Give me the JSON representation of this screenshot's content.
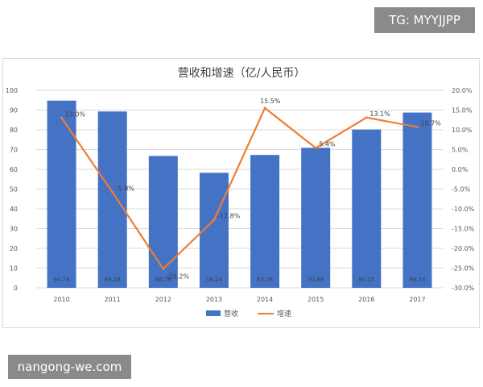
{
  "watermarks": {
    "top": "TG: MYYJJPP",
    "bottom": "nangong-we.com"
  },
  "colors": {
    "bar": "#4472C4",
    "line": "#ED7D31",
    "grid": "#D9D9D9"
  },
  "chart_data": {
    "type": "bar",
    "title": "营收和增速（亿/人民币）",
    "categories": [
      "2010",
      "2011",
      "2012",
      "2013",
      "2014",
      "2015",
      "2016",
      "2017"
    ],
    "series": [
      {
        "name": "营收",
        "type": "bar",
        "axis": "left",
        "values": [
          94.78,
          89.28,
          66.76,
          58.24,
          67.26,
          70.89,
          80.15,
          88.74
        ],
        "labels": [
          "94.78",
          "89.28",
          "66.76",
          "58.24",
          "67.26",
          "70.89",
          "80.15",
          "88.74"
        ]
      },
      {
        "name": "增速",
        "type": "line",
        "axis": "right",
        "values": [
          13.0,
          -5.8,
          -25.2,
          -12.8,
          15.5,
          5.4,
          13.1,
          10.7
        ],
        "labels": [
          "13.0%",
          "-5.8%",
          "-25.2%",
          "-12.8%",
          "15.5%",
          "5.4%",
          "13.1%",
          "10.7%"
        ]
      }
    ],
    "y_left": {
      "min": 0,
      "max": 100,
      "ticks": [
        "0",
        "10",
        "20",
        "30",
        "40",
        "50",
        "60",
        "70",
        "80",
        "90",
        "100"
      ]
    },
    "y_right": {
      "min": -30,
      "max": 20,
      "ticks": [
        "-30.0%",
        "-25.0%",
        "-20.0%",
        "-15.0%",
        "-10.0%",
        "-5.0%",
        "0.0%",
        "5.0%",
        "10.0%",
        "15.0%",
        "20.0%"
      ]
    },
    "grid": true,
    "legend_position": "bottom"
  }
}
